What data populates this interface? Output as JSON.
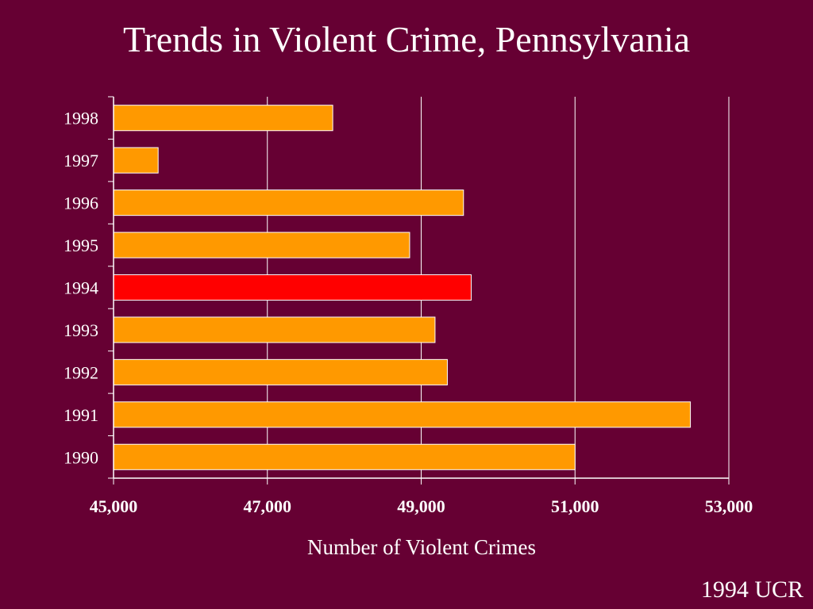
{
  "slide": {
    "title": "Trends in Violent Crime, Pennsylvania",
    "source": "1994 UCR"
  },
  "colors": {
    "background": "#660033",
    "bar": "#FF9900",
    "highlight": "#FF0000",
    "bar_border": "#FFFFFF",
    "grid": "#FFFFFF",
    "text": "#FFFFFF"
  },
  "chart_data": {
    "type": "bar",
    "orientation": "horizontal",
    "title": "Trends in Violent Crime, Pennsylvania",
    "xlabel": "Number of Violent Crimes",
    "ylabel": "",
    "categories": [
      "1998",
      "1997",
      "1996",
      "1995",
      "1994",
      "1993",
      "1992",
      "1991",
      "1990"
    ],
    "values": [
      47850,
      45580,
      49550,
      48850,
      49650,
      49180,
      49340,
      52500,
      51000
    ],
    "highlight_category": "1994",
    "xlim": [
      45000,
      53000
    ],
    "xticks": [
      45000,
      47000,
      49000,
      51000,
      53000
    ],
    "xtick_labels": [
      "45,000",
      "47,000",
      "49,000",
      "51,000",
      "53,000"
    ],
    "grid": true,
    "legend": "none"
  }
}
